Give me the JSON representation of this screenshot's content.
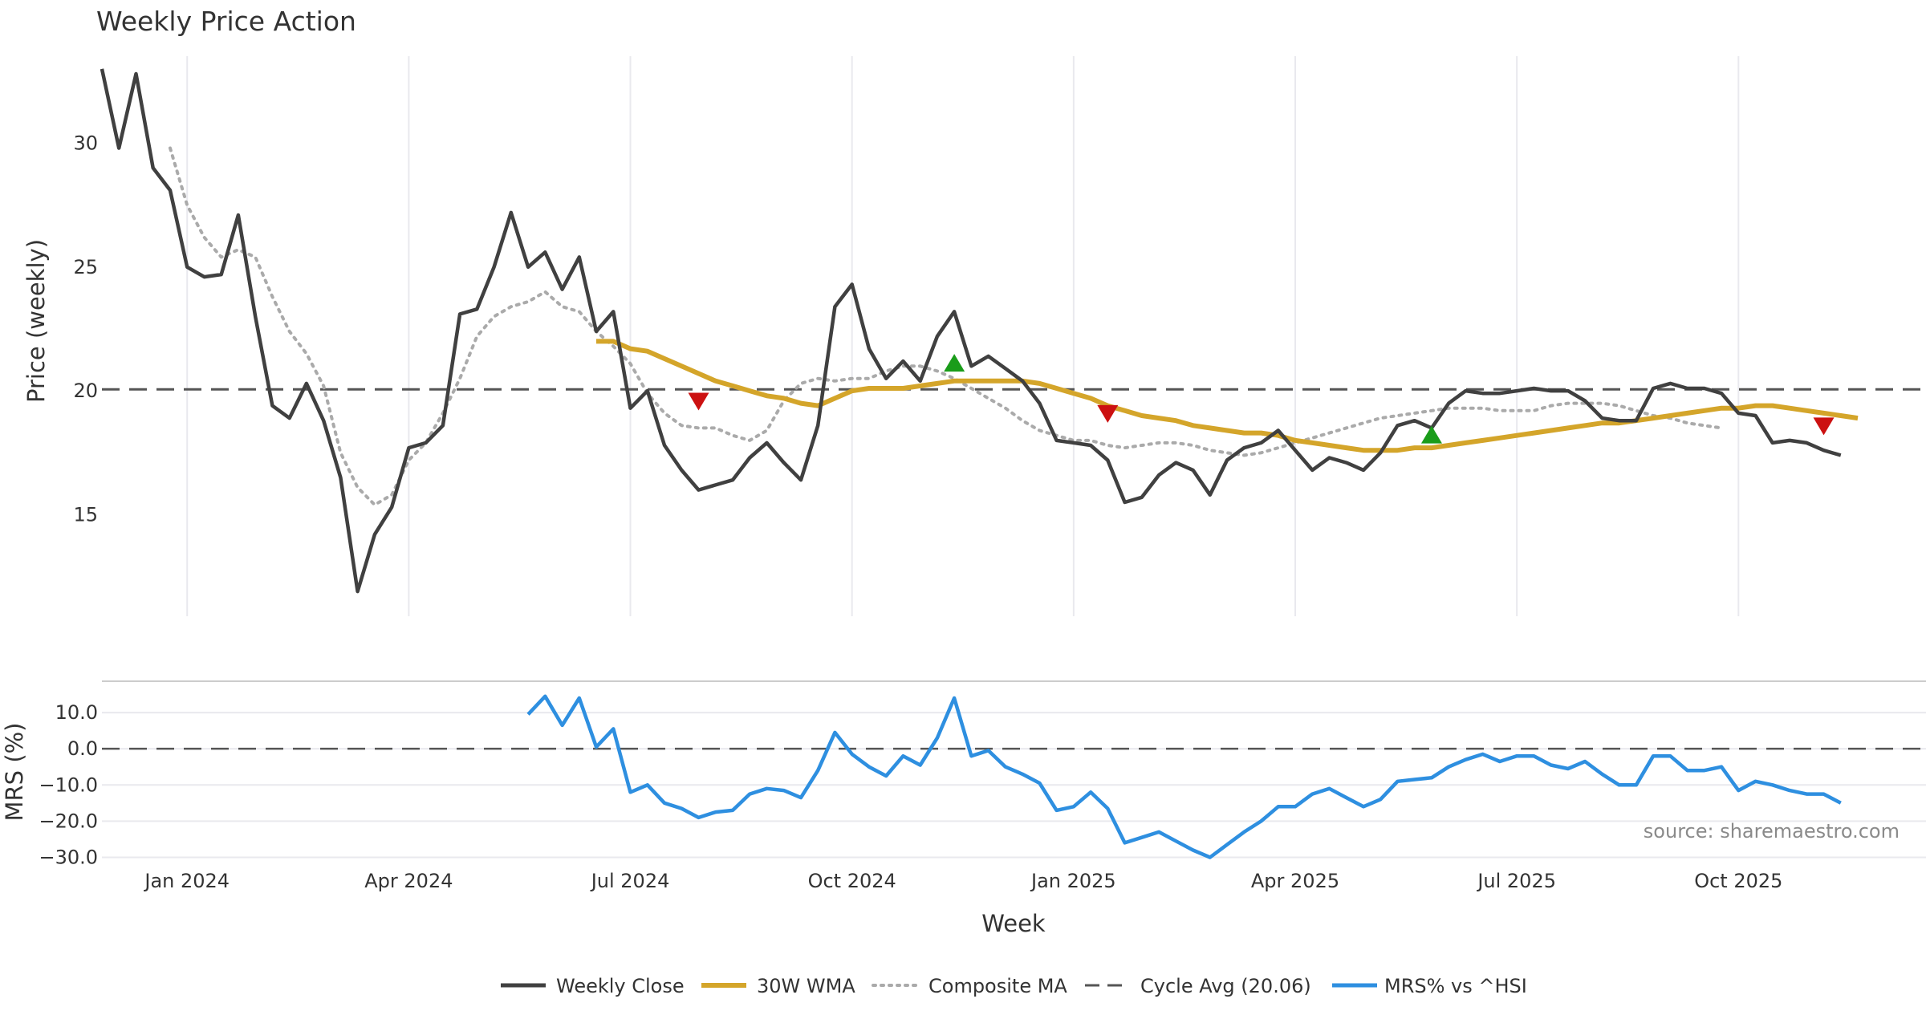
{
  "chart_data": {
    "type": "line",
    "title": "Weekly Price Action",
    "xlabel": "Week",
    "source": "source: sharemaestro.com",
    "x_ticks": [
      "Jan 2024",
      "Apr 2024",
      "Jul 2024",
      "Oct 2024",
      "Jan 2025",
      "Apr 2025",
      "Jul 2025",
      "Oct 2025"
    ],
    "x_tick_weeks": [
      5,
      18,
      31,
      44,
      57,
      70,
      83,
      96
    ],
    "x_range": [
      0,
      107
    ],
    "price_panel": {
      "ylabel": "Price (weekly)",
      "ylim": [
        10.9,
        34.0
      ],
      "y_ticks": [
        "15",
        "20",
        "25",
        "30"
      ],
      "y_tick_values": [
        15,
        20,
        25,
        30
      ],
      "cycle_avg": 20.06,
      "weekly_close": [
        33.0,
        29.8,
        32.8,
        29.0,
        28.1,
        25.0,
        24.6,
        24.7,
        27.1,
        23.0,
        19.4,
        18.9,
        20.3,
        18.8,
        16.5,
        11.9,
        14.2,
        15.3,
        17.7,
        17.9,
        18.6,
        23.1,
        23.3,
        25.0,
        27.2,
        25.0,
        25.6,
        24.1,
        25.4,
        22.4,
        23.2,
        19.3,
        20.0,
        17.8,
        16.8,
        16.0,
        16.2,
        16.4,
        17.3,
        17.9,
        17.1,
        16.4,
        18.6,
        23.4,
        24.3,
        21.7,
        20.5,
        21.2,
        20.4,
        22.2,
        23.2,
        21.0,
        21.4,
        20.9,
        20.4,
        19.5,
        18.0,
        17.9,
        17.8,
        17.2,
        15.5,
        15.7,
        16.6,
        17.1,
        16.8,
        15.8,
        17.2,
        17.7,
        17.9,
        18.4,
        17.6,
        16.8,
        17.3,
        17.1,
        16.8,
        17.5,
        18.6,
        18.8,
        18.5,
        19.5,
        20.0,
        19.9,
        19.9,
        20.0,
        20.1,
        20.0,
        20.0,
        19.6,
        18.9,
        18.8,
        18.8,
        20.1,
        20.3,
        20.1,
        20.1,
        19.9,
        19.1,
        19.0,
        17.9,
        18.0,
        17.9,
        17.6,
        17.4
      ],
      "wma_30w_start_week": 29,
      "wma_30w": [
        22.0,
        22.0,
        21.7,
        21.6,
        21.3,
        21.0,
        20.7,
        20.4,
        20.2,
        20.0,
        19.8,
        19.7,
        19.5,
        19.4,
        19.7,
        20.0,
        20.1,
        20.1,
        20.1,
        20.2,
        20.3,
        20.4,
        20.4,
        20.4,
        20.4,
        20.4,
        20.3,
        20.1,
        19.9,
        19.7,
        19.4,
        19.2,
        19.0,
        18.9,
        18.8,
        18.6,
        18.5,
        18.4,
        18.3,
        18.3,
        18.2,
        18.0,
        17.9,
        17.8,
        17.7,
        17.6,
        17.6,
        17.6,
        17.7,
        17.7,
        17.8,
        17.9,
        18.0,
        18.1,
        18.2,
        18.3,
        18.4,
        18.5,
        18.6,
        18.7,
        18.7,
        18.8,
        18.9,
        19.0,
        19.1,
        19.2,
        19.3,
        19.3,
        19.4,
        19.4,
        19.3,
        19.2,
        19.1,
        19.0,
        18.9
      ],
      "composite_ma_start_week": 4,
      "composite_ma": [
        29.8,
        27.5,
        26.2,
        25.4,
        25.7,
        25.4,
        23.8,
        22.4,
        21.5,
        20.2,
        17.5,
        16.1,
        15.4,
        15.8,
        17.2,
        17.9,
        19.1,
        20.5,
        22.2,
        23.0,
        23.4,
        23.6,
        24.0,
        23.4,
        23.2,
        22.4,
        21.8,
        21.1,
        19.9,
        19.1,
        18.6,
        18.5,
        18.5,
        18.2,
        18.0,
        18.4,
        19.6,
        20.3,
        20.5,
        20.4,
        20.5,
        20.5,
        20.8,
        21.0,
        21.0,
        20.8,
        20.5,
        20.1,
        19.7,
        19.3,
        18.8,
        18.4,
        18.2,
        18.0,
        18.0,
        17.8,
        17.7,
        17.8,
        17.9,
        17.9,
        17.8,
        17.6,
        17.5,
        17.4,
        17.5,
        17.7,
        17.9,
        18.1,
        18.3,
        18.5,
        18.7,
        18.9,
        19.0,
        19.1,
        19.2,
        19.3,
        19.3,
        19.3,
        19.2,
        19.2,
        19.2,
        19.4,
        19.5,
        19.5,
        19.5,
        19.4,
        19.2,
        19.0,
        18.9,
        18.7,
        18.6,
        18.5
      ],
      "buy_signals": [
        {
          "week": 50,
          "value": 21.1
        },
        {
          "week": 78,
          "value": 18.2
        }
      ],
      "sell_signals": [
        {
          "week": 35,
          "value": 19.6
        },
        {
          "week": 59,
          "value": 19.1
        },
        {
          "week": 101,
          "value": 18.6
        }
      ]
    },
    "mrs_panel": {
      "ylabel": "MRS (%)",
      "ylim": [
        -31.0,
        18.0
      ],
      "y_ticks": [
        "10.0",
        "0.0",
        "−10.0",
        "−20.0",
        "−30.0"
      ],
      "y_tick_values": [
        10,
        0,
        -10,
        -20,
        -30
      ],
      "reference": 0,
      "mrs_start_week": 25,
      "mrs": [
        9.5,
        14.5,
        6.5,
        14.0,
        0.5,
        5.5,
        -12.0,
        -10.0,
        -15.0,
        -16.5,
        -19.0,
        -17.5,
        -17.0,
        -12.5,
        -11.0,
        -11.5,
        -13.5,
        -6.0,
        4.5,
        -1.5,
        -5.0,
        -7.5,
        -2.0,
        -4.5,
        3.0,
        14.0,
        -2.0,
        -0.5,
        -5.0,
        -7.0,
        -9.5,
        -17.0,
        -16.0,
        -12.0,
        -16.5,
        -26.0,
        -24.5,
        -23.0,
        -25.5,
        -28.0,
        -30.0,
        -26.5,
        -23.0,
        -20.0,
        -16.0,
        -16.0,
        -12.5,
        -11.0,
        -13.5,
        -16.0,
        -14.0,
        -9.0,
        -8.5,
        -8.0,
        -5.0,
        -3.0,
        -1.5,
        -3.5,
        -2.0,
        -2.0,
        -4.5,
        -5.5,
        -3.5,
        -7.0,
        -10.0,
        -10.0,
        -2.0,
        -2.0,
        -6.0,
        -6.0,
        -5.0,
        -11.5,
        -9.0,
        -10.0,
        -11.5,
        -12.5,
        -12.5,
        -15.0
      ]
    },
    "legend": [
      "Weekly Close",
      "30W WMA",
      "Composite MA",
      "Cycle Avg (20.06)",
      "MRS% vs ^HSI"
    ],
    "colors": {
      "weekly_close": "#404040",
      "wma": "#d4a52a",
      "composite": "#aaaaaa",
      "cycle": "#555555",
      "mrs": "#2e8fe0",
      "buy": "#1a9c1a",
      "sell": "#cc1111",
      "grid": "#e9e9ee"
    }
  }
}
